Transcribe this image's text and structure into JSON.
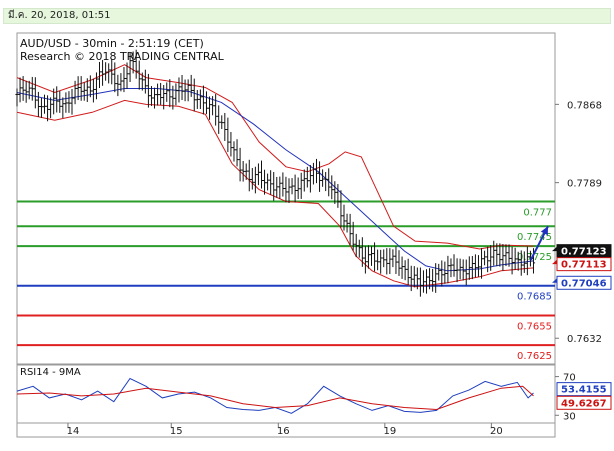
{
  "header": {
    "datetime": "มี.ค. 20, 2018, 01:51"
  },
  "chart_data": [
    {
      "type": "candlestick",
      "title": "AUD/USD - 30min - 2:51:19 (CET)",
      "subtitle": "Research © 2018 TRADING CENTRAL",
      "ylim": [
        0.7606,
        0.794
      ],
      "y_tick_labels": [
        {
          "value": 0.7868,
          "label": "0.7868"
        },
        {
          "value": 0.7789,
          "label": "0.7789"
        },
        {
          "value": 0.7632,
          "label": "0.7632"
        }
      ],
      "x_tick_labels": [
        {
          "pos": 0.104,
          "label": "14"
        },
        {
          "pos": 0.296,
          "label": "15"
        },
        {
          "pos": 0.495,
          "label": "16"
        },
        {
          "pos": 0.693,
          "label": "19"
        },
        {
          "pos": 0.891,
          "label": "20"
        }
      ],
      "horizontal_levels": [
        {
          "value": 0.777,
          "label": "0.777",
          "color": "#2a9d2a"
        },
        {
          "value": 0.7745,
          "label": "0.7745",
          "color": "#2a9d2a"
        },
        {
          "value": 0.7725,
          "label": "0.7725",
          "color": "#2a9d2a"
        },
        {
          "value": 0.7685,
          "label": "0.7685",
          "color": "#1f3fbf"
        },
        {
          "value": 0.7655,
          "label": "0.7655",
          "color": "#e02020"
        },
        {
          "value": 0.7625,
          "label": "0.7625",
          "color": "#e02020"
        }
      ],
      "price_badges": [
        {
          "value": 0.77123,
          "label": "0.77123",
          "color": "#111111"
        },
        {
          "value": 0.77113,
          "label": "0.77113",
          "color": "#cc1111"
        },
        {
          "value": 0.77046,
          "label": "0.77046",
          "color": "#1f3fbf"
        }
      ],
      "close_path": [
        [
          0.0,
          0.7878
        ],
        [
          0.015,
          0.7885
        ],
        [
          0.03,
          0.788
        ],
        [
          0.045,
          0.7862
        ],
        [
          0.06,
          0.7868
        ],
        [
          0.075,
          0.7872
        ],
        [
          0.09,
          0.7865
        ],
        [
          0.105,
          0.788
        ],
        [
          0.12,
          0.7885
        ],
        [
          0.135,
          0.788
        ],
        [
          0.15,
          0.7895
        ],
        [
          0.165,
          0.7904
        ],
        [
          0.18,
          0.7893
        ],
        [
          0.195,
          0.7887
        ],
        [
          0.21,
          0.7912
        ],
        [
          0.225,
          0.79
        ],
        [
          0.24,
          0.7882
        ],
        [
          0.255,
          0.7874
        ],
        [
          0.27,
          0.788
        ],
        [
          0.285,
          0.7876
        ],
        [
          0.3,
          0.7882
        ],
        [
          0.315,
          0.7886
        ],
        [
          0.33,
          0.7876
        ],
        [
          0.345,
          0.787
        ],
        [
          0.36,
          0.7866
        ],
        [
          0.375,
          0.7853
        ],
        [
          0.39,
          0.7836
        ],
        [
          0.405,
          0.7816
        ],
        [
          0.42,
          0.78
        ],
        [
          0.435,
          0.7792
        ],
        [
          0.45,
          0.7797
        ],
        [
          0.465,
          0.7788
        ],
        [
          0.48,
          0.7785
        ],
        [
          0.495,
          0.7784
        ],
        [
          0.51,
          0.7782
        ],
        [
          0.525,
          0.7786
        ],
        [
          0.54,
          0.7795
        ],
        [
          0.555,
          0.78
        ],
        [
          0.57,
          0.779
        ],
        [
          0.585,
          0.7785
        ],
        [
          0.6,
          0.7762
        ],
        [
          0.615,
          0.7742
        ],
        [
          0.63,
          0.7725
        ],
        [
          0.645,
          0.7712
        ],
        [
          0.66,
          0.7715
        ],
        [
          0.675,
          0.7709
        ],
        [
          0.69,
          0.7712
        ],
        [
          0.705,
          0.771
        ],
        [
          0.72,
          0.7699
        ],
        [
          0.735,
          0.7693
        ],
        [
          0.75,
          0.7689
        ],
        [
          0.765,
          0.769
        ],
        [
          0.78,
          0.7696
        ],
        [
          0.795,
          0.77
        ],
        [
          0.81,
          0.7705
        ],
        [
          0.825,
          0.7699
        ],
        [
          0.84,
          0.7702
        ],
        [
          0.855,
          0.7706
        ],
        [
          0.87,
          0.7712
        ],
        [
          0.885,
          0.7717
        ],
        [
          0.9,
          0.7715
        ],
        [
          0.915,
          0.7714
        ],
        [
          0.93,
          0.7708
        ],
        [
          0.945,
          0.771
        ],
        [
          0.96,
          0.7712
        ]
      ],
      "bollinger_upper": [
        [
          0.0,
          0.7895
        ],
        [
          0.07,
          0.788
        ],
        [
          0.14,
          0.7893
        ],
        [
          0.2,
          0.7908
        ],
        [
          0.24,
          0.7895
        ],
        [
          0.3,
          0.789
        ],
        [
          0.35,
          0.7885
        ],
        [
          0.4,
          0.787
        ],
        [
          0.45,
          0.783
        ],
        [
          0.5,
          0.7805
        ],
        [
          0.54,
          0.78
        ],
        [
          0.58,
          0.7808
        ],
        [
          0.61,
          0.782
        ],
        [
          0.64,
          0.7815
        ],
        [
          0.67,
          0.778
        ],
        [
          0.7,
          0.7745
        ],
        [
          0.74,
          0.773
        ],
        [
          0.8,
          0.7728
        ],
        [
          0.86,
          0.7722
        ],
        [
          0.9,
          0.7726
        ],
        [
          0.96,
          0.7725
        ]
      ],
      "bollinger_lower": [
        [
          0.0,
          0.786
        ],
        [
          0.07,
          0.7852
        ],
        [
          0.14,
          0.786
        ],
        [
          0.2,
          0.7872
        ],
        [
          0.24,
          0.7868
        ],
        [
          0.3,
          0.7866
        ],
        [
          0.35,
          0.7858
        ],
        [
          0.4,
          0.7808
        ],
        [
          0.45,
          0.7782
        ],
        [
          0.5,
          0.777
        ],
        [
          0.56,
          0.7768
        ],
        [
          0.6,
          0.7745
        ],
        [
          0.63,
          0.7715
        ],
        [
          0.66,
          0.77
        ],
        [
          0.7,
          0.769
        ],
        [
          0.74,
          0.7684
        ],
        [
          0.8,
          0.7688
        ],
        [
          0.86,
          0.7694
        ],
        [
          0.9,
          0.77
        ],
        [
          0.96,
          0.7703
        ]
      ],
      "moving_average": [
        [
          0.0,
          0.788
        ],
        [
          0.07,
          0.7872
        ],
        [
          0.14,
          0.7878
        ],
        [
          0.2,
          0.7884
        ],
        [
          0.26,
          0.7884
        ],
        [
          0.32,
          0.7881
        ],
        [
          0.38,
          0.787
        ],
        [
          0.44,
          0.7848
        ],
        [
          0.5,
          0.7822
        ],
        [
          0.56,
          0.78
        ],
        [
          0.6,
          0.778
        ],
        [
          0.64,
          0.776
        ],
        [
          0.68,
          0.774
        ],
        [
          0.72,
          0.772
        ],
        [
          0.76,
          0.7705
        ],
        [
          0.8,
          0.77
        ],
        [
          0.86,
          0.7702
        ],
        [
          0.9,
          0.7706
        ],
        [
          0.96,
          0.771
        ]
      ],
      "forecast_arrow": {
        "from": [
          0.955,
          0.7711
        ],
        "to": [
          0.987,
          0.7745
        ]
      }
    },
    {
      "type": "line",
      "title": "RSI14 - 9MA",
      "ylim": [
        22,
        82
      ],
      "y_tick_labels": [
        {
          "value": 70,
          "label": "70"
        },
        {
          "value": 30,
          "label": "30"
        }
      ],
      "value_badges": [
        {
          "value": 53.4155,
          "label": "53.4155",
          "color": "#1f3fbf"
        },
        {
          "value": 49.6267,
          "label": "49.6267",
          "color": "#cc1111"
        }
      ],
      "series": [
        {
          "color": "#1f3fbf",
          "values": [
            [
              0.0,
              55
            ],
            [
              0.03,
              60
            ],
            [
              0.06,
              48
            ],
            [
              0.09,
              52
            ],
            [
              0.12,
              46
            ],
            [
              0.15,
              55
            ],
            [
              0.18,
              44
            ],
            [
              0.21,
              68
            ],
            [
              0.24,
              60
            ],
            [
              0.27,
              48
            ],
            [
              0.3,
              52
            ],
            [
              0.33,
              54
            ],
            [
              0.36,
              48
            ],
            [
              0.39,
              38
            ],
            [
              0.42,
              36
            ],
            [
              0.45,
              35
            ],
            [
              0.48,
              38
            ],
            [
              0.51,
              32
            ],
            [
              0.54,
              42
            ],
            [
              0.57,
              60
            ],
            [
              0.6,
              50
            ],
            [
              0.63,
              42
            ],
            [
              0.66,
              35
            ],
            [
              0.69,
              40
            ],
            [
              0.72,
              34
            ],
            [
              0.75,
              33
            ],
            [
              0.78,
              35
            ],
            [
              0.81,
              50
            ],
            [
              0.84,
              56
            ],
            [
              0.87,
              65
            ],
            [
              0.9,
              60
            ],
            [
              0.93,
              64
            ],
            [
              0.95,
              48
            ],
            [
              0.96,
              53
            ]
          ]
        },
        {
          "color": "#cc1111",
          "values": [
            [
              0.0,
              52
            ],
            [
              0.06,
              53
            ],
            [
              0.12,
              50
            ],
            [
              0.18,
              52
            ],
            [
              0.24,
              58
            ],
            [
              0.3,
              54
            ],
            [
              0.36,
              50
            ],
            [
              0.42,
              42
            ],
            [
              0.48,
              38
            ],
            [
              0.54,
              40
            ],
            [
              0.6,
              48
            ],
            [
              0.66,
              42
            ],
            [
              0.72,
              38
            ],
            [
              0.78,
              36
            ],
            [
              0.84,
              48
            ],
            [
              0.9,
              58
            ],
            [
              0.94,
              60
            ],
            [
              0.96,
              50
            ]
          ]
        }
      ]
    }
  ]
}
